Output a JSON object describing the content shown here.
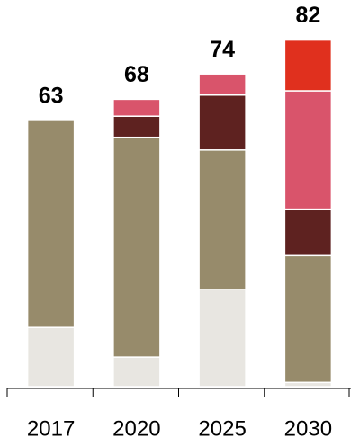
{
  "chart_data": {
    "type": "stacked-bar",
    "categories": [
      "2017",
      "2020",
      "2025",
      "2030"
    ],
    "series": [
      {
        "color": "#e8e6e1",
        "values": [
          14,
          7,
          23,
          1
        ]
      },
      {
        "color": "#978b6b",
        "values": [
          49,
          52,
          33,
          30
        ]
      },
      {
        "color": "#5e2220",
        "values": [
          null,
          5,
          13,
          11
        ]
      },
      {
        "color": "#d9546b",
        "values": [
          null,
          4,
          5,
          28
        ]
      },
      {
        "color": "#e0301e",
        "values": [
          null,
          null,
          null,
          12
        ]
      }
    ],
    "totals": [
      63,
      68,
      74,
      82
    ],
    "ylim": [
      0,
      90
    ]
  }
}
